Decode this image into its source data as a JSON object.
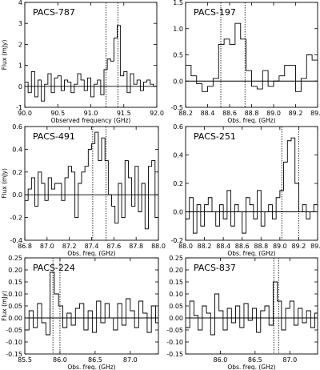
{
  "chart_data": [
    {
      "type": "line",
      "step": true,
      "title": "PACS-787",
      "xlabel": "Observed frequency (GHz)",
      "ylabel": "Flux (mJy)",
      "xlim": [
        90.0,
        92.0
      ],
      "ylim": [
        -1,
        4
      ],
      "xticks": [
        "90.0",
        "90.5",
        "91.0",
        "91.5",
        "92.0"
      ],
      "yticks": [
        "-1",
        "0",
        "1",
        "2",
        "3",
        "4"
      ],
      "markers": [
        91.23,
        91.41
      ],
      "series": [
        {
          "x": [
            90.0,
            90.05,
            90.1,
            90.15,
            90.2,
            90.25,
            90.3,
            90.35,
            90.4,
            90.45,
            90.5,
            90.55,
            90.6,
            90.65,
            90.7,
            90.75,
            90.8,
            90.85,
            90.9,
            90.95,
            91.0,
            91.05,
            91.1,
            91.15,
            91.2,
            91.25,
            91.3,
            91.35,
            91.4,
            91.45,
            91.5,
            91.55,
            91.6,
            91.65,
            91.7,
            91.75,
            91.8,
            91.85,
            91.9,
            91.95
          ],
          "y": [
            0.2,
            -0.3,
            0.7,
            -0.5,
            0.3,
            -0.7,
            0.1,
            0.6,
            -0.3,
            0.4,
            0.5,
            -0.2,
            0.3,
            0.2,
            -0.3,
            0.1,
            0.6,
            0.3,
            -0.2,
            0.4,
            -0.5,
            0.1,
            0.3,
            -0.4,
            0.8,
            1.3,
            1.2,
            2.3,
            2.9,
            0.5,
            0.7,
            -0.3,
            0.6,
            0.1,
            0.3,
            -0.2,
            0.2,
            0.3,
            0.1,
            0.0
          ]
        }
      ]
    },
    {
      "type": "line",
      "step": true,
      "title": "PACS-197",
      "xlabel": "Obs. freq. (GHz)",
      "ylabel": "",
      "xlim": [
        88.2,
        89.4
      ],
      "ylim": [
        -0.5,
        1.5
      ],
      "xticks": [
        "88.2",
        "88.4",
        "88.6",
        "88.8",
        "89.0",
        "89.2",
        "89.4"
      ],
      "yticks": [
        "-0.5",
        "0.0",
        "0.5",
        "1.0",
        "1.5"
      ],
      "markers": [
        88.52,
        88.74
      ],
      "series": [
        {
          "x": [
            88.2,
            88.25,
            88.3,
            88.35,
            88.4,
            88.45,
            88.5,
            88.55,
            88.6,
            88.65,
            88.7,
            88.75,
            88.8,
            88.85,
            88.9,
            88.95,
            89.0,
            89.05,
            89.1,
            89.15,
            89.2,
            89.25,
            89.3,
            89.35
          ],
          "y": [
            0.3,
            0.1,
            -0.05,
            -0.2,
            -0.1,
            0.05,
            0.7,
            0.8,
            0.7,
            1.1,
            0.8,
            0.2,
            -0.1,
            -0.15,
            0.2,
            -0.1,
            0.0,
            0.1,
            0.3,
            0.3,
            -0.2,
            0.05,
            0.5,
            0.4
          ]
        }
      ]
    },
    {
      "type": "line",
      "step": true,
      "title": "PACS-491",
      "xlabel": "Obs. freq. (GHz)",
      "ylabel": "Flux (mJy)",
      "xlim": [
        86.8,
        88.0
      ],
      "ylim": [
        -0.4,
        0.6
      ],
      "xticks": [
        "86.8",
        "87.0",
        "87.2",
        "87.4",
        "87.6",
        "87.8",
        "88.0"
      ],
      "yticks": [
        "-0.4",
        "-0.2",
        "0.0",
        "0.2",
        "0.4",
        "0.6"
      ],
      "markers": [
        87.41,
        87.53
      ],
      "series": [
        {
          "x": [
            86.8,
            86.83,
            86.86,
            86.89,
            86.92,
            86.95,
            86.98,
            87.01,
            87.04,
            87.07,
            87.1,
            87.13,
            87.16,
            87.19,
            87.22,
            87.25,
            87.28,
            87.31,
            87.34,
            87.37,
            87.4,
            87.43,
            87.46,
            87.49,
            87.52,
            87.55,
            87.58,
            87.61,
            87.64,
            87.67,
            87.7,
            87.73,
            87.76,
            87.79,
            87.82,
            87.85,
            87.88,
            87.91,
            87.94,
            87.97
          ],
          "y": [
            -0.05,
            0.05,
            0.15,
            -0.1,
            0.2,
            0.1,
            -0.05,
            0.15,
            0.05,
            0.1,
            0.1,
            -0.05,
            0.15,
            0.25,
            0.2,
            -0.2,
            0.1,
            0.2,
            0.25,
            0.4,
            0.45,
            0.55,
            0.3,
            0.5,
            0.3,
            0.0,
            -0.1,
            -0.25,
            0.1,
            -0.2,
            0.3,
            0.15,
            -0.1,
            0.25,
            -0.15,
            0.1,
            -0.3,
            0.25,
            0.3,
            -0.2
          ]
        }
      ]
    },
    {
      "type": "line",
      "step": true,
      "title": "PACS-251",
      "xlabel": "Obs. freq. (GHz)",
      "ylabel": "",
      "xlim": [
        88.0,
        89.4
      ],
      "ylim": [
        -0.2,
        0.6
      ],
      "xticks": [
        "88.0",
        "88.2",
        "88.4",
        "88.6",
        "88.8",
        "89.0",
        "89.2",
        "89.4"
      ],
      "yticks": [
        "-0.2",
        "0.0",
        "0.2",
        "0.4",
        "0.6"
      ],
      "markers": [
        89.02,
        89.2
      ],
      "series": [
        {
          "x": [
            88.0,
            88.04,
            88.08,
            88.12,
            88.16,
            88.2,
            88.24,
            88.28,
            88.32,
            88.36,
            88.4,
            88.44,
            88.48,
            88.52,
            88.56,
            88.6,
            88.64,
            88.68,
            88.72,
            88.76,
            88.8,
            88.84,
            88.88,
            88.92,
            88.96,
            89.0,
            89.04,
            89.08,
            89.12,
            89.16,
            89.2,
            89.24,
            89.28,
            89.32,
            89.36
          ],
          "y": [
            -0.05,
            0.1,
            -0.15,
            0.05,
            -0.1,
            0.05,
            0.1,
            0.0,
            -0.1,
            0.05,
            -0.05,
            0.15,
            -0.1,
            0.05,
            0.0,
            -0.15,
            0.1,
            0.05,
            -0.05,
            0.15,
            -0.1,
            0.0,
            0.05,
            -0.05,
            0.1,
            0.15,
            0.35,
            0.5,
            0.52,
            0.2,
            0.0,
            0.05,
            -0.05,
            0.0,
            0.05
          ]
        }
      ]
    },
    {
      "type": "line",
      "step": true,
      "title": "PACS-224",
      "xlabel": "Obs. freq. (GHz)",
      "ylabel": "Flux (mJy)",
      "xlim": [
        85.5,
        87.4
      ],
      "ylim": [
        -0.15,
        0.25
      ],
      "xticks": [
        "85.5",
        "86.0",
        "86.5",
        "87.0"
      ],
      "yticks": [
        "-0.15",
        "-0.10",
        "-0.05",
        "0.00",
        "0.05",
        "0.10",
        "0.15",
        "0.20",
        "0.25"
      ],
      "markers": [
        85.9,
        86.0
      ],
      "series": [
        {
          "x": [
            85.5,
            85.56,
            85.62,
            85.68,
            85.74,
            85.8,
            85.86,
            85.92,
            85.98,
            86.04,
            86.1,
            86.16,
            86.22,
            86.28,
            86.34,
            86.4,
            86.46,
            86.52,
            86.58,
            86.64,
            86.7,
            86.76,
            86.82,
            86.88,
            86.94,
            87.0,
            87.06,
            87.12,
            87.18,
            87.24,
            87.3,
            87.36
          ],
          "y": [
            -0.05,
            0.03,
            -0.04,
            0.06,
            -0.02,
            -0.07,
            0.19,
            0.1,
            0.05,
            -0.04,
            0.02,
            -0.03,
            0.04,
            0.06,
            -0.05,
            0.03,
            -0.06,
            0.07,
            -0.02,
            0.06,
            0.0,
            -0.05,
            0.06,
            -0.03,
            0.08,
            0.03,
            -0.04,
            0.07,
            0.02,
            -0.06,
            0.05,
            -0.02
          ]
        }
      ]
    },
    {
      "type": "line",
      "step": true,
      "title": "PACS-837",
      "xlabel": "Obs. freq. (GHz)",
      "ylabel": "",
      "xlim": [
        85.5,
        87.4
      ],
      "ylim": [
        -0.15,
        0.25
      ],
      "xticks": [
        "86.0",
        "86.5",
        "87.0"
      ],
      "yticks": [
        "-0.15",
        "-0.10",
        "-0.05",
        "0.00",
        "0.05",
        "0.10",
        "0.15",
        "0.20",
        "0.25"
      ],
      "markers": [
        86.77,
        86.84
      ],
      "series": [
        {
          "x": [
            85.5,
            85.56,
            85.62,
            85.68,
            85.74,
            85.8,
            85.86,
            85.92,
            85.98,
            86.04,
            86.1,
            86.16,
            86.22,
            86.28,
            86.34,
            86.4,
            86.46,
            86.52,
            86.58,
            86.64,
            86.7,
            86.76,
            86.82,
            86.88,
            86.94,
            87.0,
            87.06,
            87.12,
            87.18,
            87.24,
            87.3,
            87.36
          ],
          "y": [
            -0.04,
            0.07,
            0.01,
            -0.05,
            0.05,
            0.02,
            -0.07,
            0.1,
            0.03,
            -0.05,
            0.04,
            -0.02,
            0.05,
            -0.04,
            0.06,
            -0.01,
            0.04,
            -0.06,
            0.03,
            0.05,
            -0.03,
            0.15,
            0.07,
            -0.05,
            0.04,
            0.07,
            -0.03,
            0.04,
            -0.02,
            0.03,
            -0.04,
            0.02
          ]
        }
      ]
    }
  ]
}
